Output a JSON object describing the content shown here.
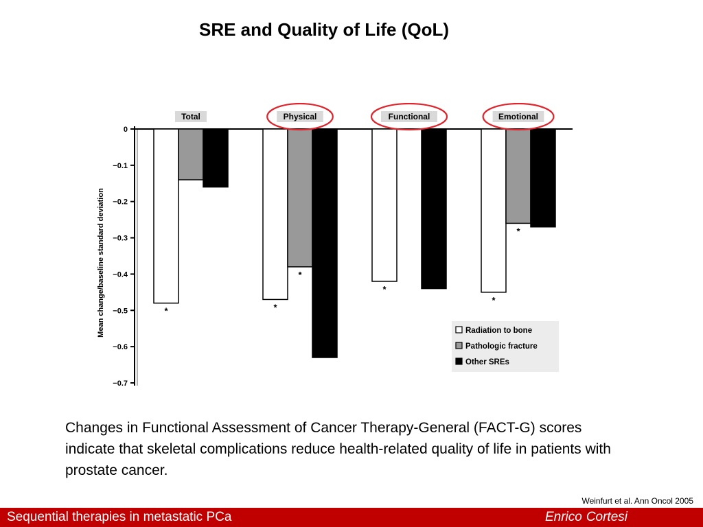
{
  "slide": {
    "title": "SRE and Quality of Life (QoL)",
    "caption": "Changes in Functional Assessment of Cancer Therapy-General (FACT-G) scores indicate that skeletal complications reduce health-related quality of life in patients with prostate cancer.",
    "citation": "Weinfurt et al. Ann Oncol 2005",
    "footer_left": "Sequential therapies in metastatic PCa",
    "footer_author_first": "Enrico",
    "footer_author_last": "Cortesi",
    "footer_color": "#c00000"
  },
  "chart_data": {
    "type": "bar",
    "title": "",
    "xlabel": "",
    "ylabel": "Mean change/baseline standard deviation",
    "ylim": [
      -0.7,
      0
    ],
    "yticks": [
      0,
      -0.1,
      -0.2,
      -0.3,
      -0.4,
      -0.5,
      -0.6,
      -0.7
    ],
    "ytick_labels": [
      "0",
      "−0.1",
      "−0.2",
      "−0.3",
      "−0.4",
      "−0.5",
      "−0.6",
      "−0.7"
    ],
    "categories": [
      "Total",
      "Physical",
      "Functional",
      "Emotional"
    ],
    "highlighted_categories": [
      "Physical",
      "Functional",
      "Emotional"
    ],
    "highlight_color": "#e0242c",
    "series": [
      {
        "name": "Radiation to bone",
        "color": "#ffffff",
        "values": [
          -0.48,
          -0.47,
          -0.42,
          -0.45
        ],
        "significant": [
          true,
          true,
          true,
          true
        ]
      },
      {
        "name": "Pathologic fracture",
        "color": "#999999",
        "values": [
          -0.14,
          -0.38,
          null,
          -0.26
        ],
        "significant": [
          false,
          true,
          false,
          true
        ]
      },
      {
        "name": "Other SREs",
        "color": "#000000",
        "values": [
          -0.16,
          -0.63,
          -0.44,
          -0.27
        ],
        "significant": [
          false,
          false,
          false,
          false
        ]
      }
    ],
    "significance_marker": "*",
    "legend_position": "bottom-right",
    "grid": false
  }
}
